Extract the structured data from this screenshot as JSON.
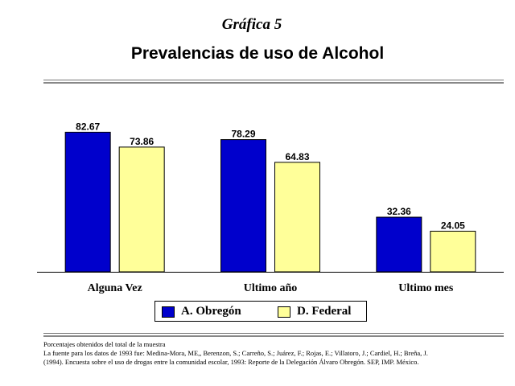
{
  "header": {
    "graph_number": "Gráfica 5",
    "title": "Prevalencias de uso de Alcohol"
  },
  "chart_data": {
    "type": "bar",
    "title": "Prevalencias de uso de Alcohol",
    "categories": [
      "Alguna Vez",
      "Ultimo año",
      "Ultimo mes"
    ],
    "series": [
      {
        "name": "A. Obregón",
        "color": "#0000cc",
        "values": [
          82.67,
          78.29,
          32.36
        ],
        "labels": [
          "82.67",
          "78.29",
          "32.36"
        ]
      },
      {
        "name": "D. Federal",
        "color": "#ffff99",
        "values": [
          73.86,
          64.83,
          24.05
        ],
        "labels": [
          "73.86",
          "64.83",
          "24.05"
        ]
      }
    ],
    "ylim": [
      0,
      100
    ],
    "grid": false,
    "legend": "bottom"
  },
  "footnote": {
    "line1": "Porcentajes obtenidos del total de la muestra",
    "line2": "La fuente para los datos de 1993 fue: Medina-Mora, ME,, Berenzon, S.; Carreño, S.; Juárez, F.; Rojas, E.; Villatoro, J.; Cardiel, H.; Breña, J.",
    "line3": "(1994). Encuesta sobre el uso de drogas entre la comunidad escolar, 1993: Reporte de la Delegación Álvaro Obregón. SEP, IMP. México."
  }
}
